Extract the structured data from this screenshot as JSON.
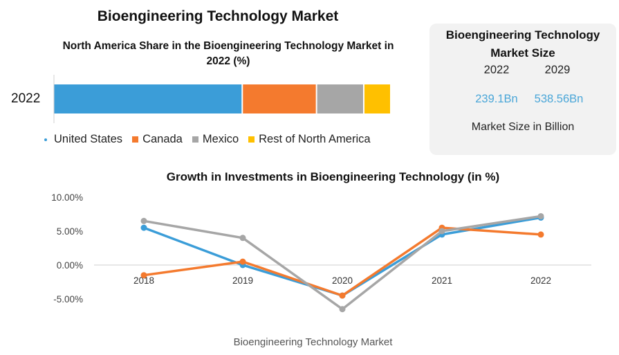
{
  "page": {
    "title": "Bioengineering Technology Market",
    "footer": "Bioengineering Technology Market"
  },
  "chart_data": [
    {
      "type": "bar",
      "subtype": "stacked-horizontal",
      "title": "North America Share in the Bioengineering Technology Market in 2022 (%)",
      "categories": [
        "2022"
      ],
      "series": [
        {
          "name": "United States",
          "values": [
            56
          ],
          "color": "#3b9dd8"
        },
        {
          "name": "Canada",
          "values": [
            22
          ],
          "color": "#f47a2e"
        },
        {
          "name": "Mexico",
          "values": [
            14
          ],
          "color": "#a6a6a6"
        },
        {
          "name": "Rest of North America",
          "values": [
            8
          ],
          "color": "#ffc000"
        }
      ],
      "legend": "bottom"
    },
    {
      "type": "table",
      "title": "Bioengineering Technology Market Size",
      "columns": [
        "2022",
        "2029"
      ],
      "values": [
        "239.1Bn",
        "538.56Bn"
      ],
      "note": "Market Size in Billion"
    },
    {
      "type": "line",
      "title": "Growth in Investments in Bioengineering Technology (in %)",
      "x": [
        "2018",
        "2019",
        "2020",
        "2021",
        "2022"
      ],
      "yticks": [
        "10.00%",
        "5.00%",
        "0.00%",
        "-5.00%"
      ],
      "ylim": [
        -5,
        10
      ],
      "grid": false,
      "series": [
        {
          "values": [
            5.5,
            0.0,
            -4.5,
            4.5,
            7.0
          ],
          "color": "#3b9dd8"
        },
        {
          "values": [
            -1.5,
            0.5,
            -4.5,
            5.5,
            4.5
          ],
          "color": "#f47a2e"
        },
        {
          "values": [
            6.5,
            4.0,
            -6.5,
            5.0,
            7.2
          ],
          "color": "#a6a6a6"
        }
      ]
    }
  ]
}
